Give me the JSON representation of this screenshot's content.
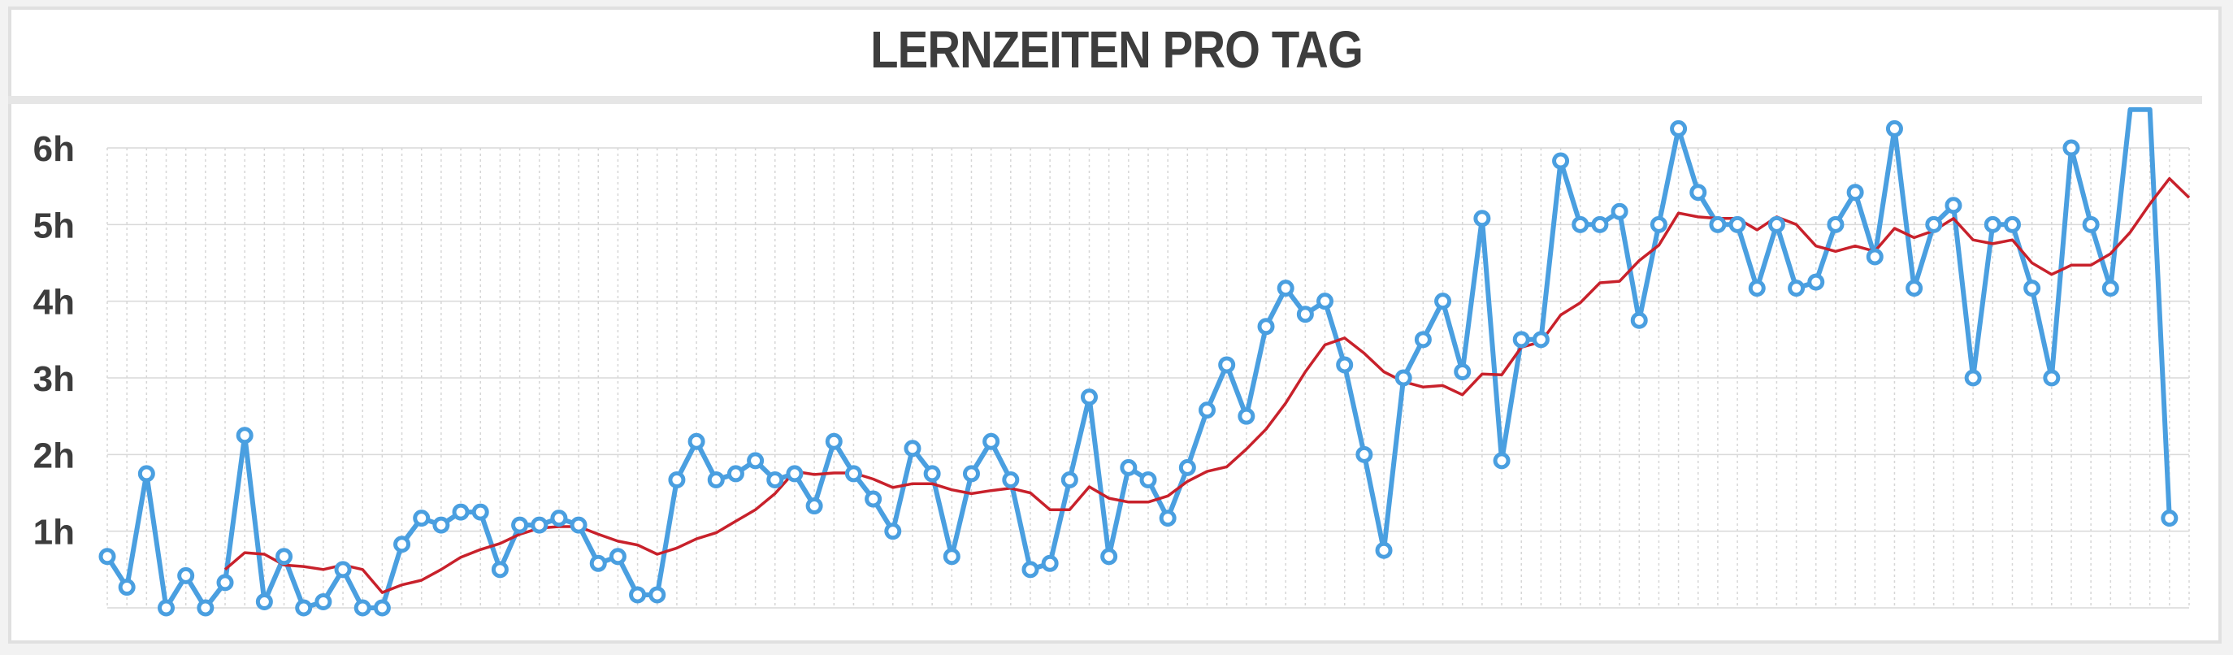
{
  "chart_data": {
    "type": "line",
    "title": "LERNZEITEN PRO TAG",
    "xlabel": "",
    "ylabel": "",
    "ylim": [
      0,
      6
    ],
    "yticks": [
      {
        "value": 1,
        "label": "1h"
      },
      {
        "value": 2,
        "label": "2h"
      },
      {
        "value": 3,
        "label": "3h"
      },
      {
        "value": 4,
        "label": "4h"
      },
      {
        "value": 5,
        "label": "5h"
      },
      {
        "value": 6,
        "label": "6h"
      }
    ],
    "grid": true,
    "series": [
      {
        "color": "#4a9fe0",
        "markers": true,
        "values": [
          0.67,
          0.27,
          1.75,
          0.0,
          0.42,
          0.0,
          0.33,
          2.25,
          0.08,
          0.67,
          0.0,
          0.08,
          0.5,
          0.0,
          0.0,
          0.83,
          1.17,
          1.08,
          1.25,
          1.25,
          0.5,
          1.08,
          1.08,
          1.17,
          1.08,
          0.58,
          0.67,
          0.17,
          0.17,
          1.67,
          2.17,
          1.67,
          1.75,
          1.92,
          1.67,
          1.75,
          1.33,
          2.17,
          1.75,
          1.42,
          1.0,
          2.08,
          1.75,
          0.67,
          1.75,
          2.17,
          1.67,
          0.5,
          0.58,
          1.67,
          2.75,
          0.67,
          1.83,
          1.67,
          1.17,
          1.83,
          2.58,
          3.17,
          2.5,
          3.67,
          4.17,
          3.83,
          4.0,
          3.17,
          2.0,
          0.75,
          3.0,
          3.5,
          4.0,
          3.08,
          5.08,
          1.92,
          3.5,
          3.5,
          5.83,
          5.0,
          5.0,
          5.17,
          3.75,
          5.0,
          6.25,
          5.42,
          5.0,
          5.0,
          4.17,
          5.0,
          4.17,
          4.25,
          5.0,
          5.42,
          4.58,
          6.25,
          4.17,
          5.0,
          5.25,
          3.0,
          5.0,
          5.0,
          4.17,
          3.0,
          6.0,
          5.0,
          4.17,
          6.5,
          6.5,
          1.17
        ]
      },
      {
        "color": "#c8212b",
        "markers": false,
        "values": [
          null,
          null,
          null,
          null,
          null,
          null,
          0.5,
          0.72,
          0.7,
          0.56,
          0.54,
          0.5,
          0.56,
          0.5,
          0.2,
          0.3,
          0.36,
          0.5,
          0.66,
          0.76,
          0.84,
          0.96,
          1.04,
          1.06,
          1.06,
          0.96,
          0.87,
          0.82,
          0.7,
          0.78,
          0.9,
          0.98,
          1.13,
          1.28,
          1.49,
          1.78,
          1.74,
          1.76,
          1.76,
          1.68,
          1.57,
          1.62,
          1.62,
          1.54,
          1.49,
          1.53,
          1.56,
          1.5,
          1.28,
          1.28,
          1.58,
          1.43,
          1.38,
          1.38,
          1.46,
          1.65,
          1.78,
          1.84,
          2.07,
          2.33,
          2.67,
          3.08,
          3.43,
          3.52,
          3.32,
          3.08,
          2.95,
          2.88,
          2.9,
          2.78,
          3.05,
          3.04,
          3.4,
          3.47,
          3.82,
          3.98,
          4.24,
          4.26,
          4.53,
          4.73,
          5.15,
          5.1,
          5.08,
          5.08,
          4.93,
          5.1,
          5.0,
          4.72,
          4.65,
          4.72,
          4.65,
          4.95,
          4.83,
          4.92,
          5.08,
          4.8,
          4.75,
          4.8,
          4.5,
          4.35,
          4.47,
          4.47,
          4.62,
          4.9,
          5.27,
          5.6,
          5.35
        ]
      }
    ]
  }
}
